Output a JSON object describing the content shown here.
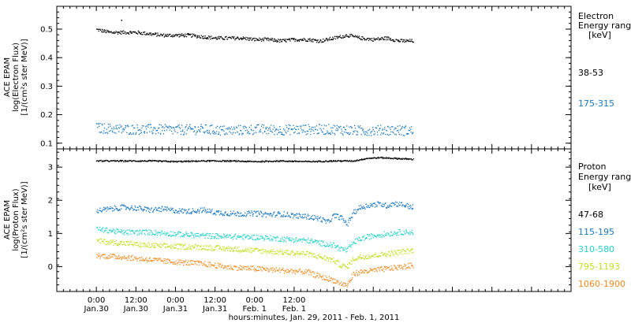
{
  "chart_data": [
    {
      "type": "scatter",
      "panel": "electron",
      "ylabel_lines": [
        "ACE EPAM",
        "log(Electron Flux)",
        "[1/(cm²s ster MeV)]"
      ],
      "ylim": [
        0.08,
        0.58
      ],
      "yticks": [
        0.1,
        0.2,
        0.3,
        0.4,
        0.5
      ],
      "ytick_labels": [
        "0.1",
        "0.2",
        "0.3",
        "0.4",
        "0.5"
      ],
      "legend_title": [
        "Electron",
        "Energy range",
        "[keV]"
      ],
      "series": [
        {
          "name": "38-53",
          "color": "#000000",
          "x": [
            0,
            4,
            8,
            12,
            16,
            20,
            24,
            28,
            32,
            36,
            40,
            44,
            48,
            52,
            56,
            60,
            64,
            68,
            72,
            76,
            80,
            84,
            88,
            90,
            92,
            96
          ],
          "y": [
            0.5,
            0.49,
            0.49,
            0.49,
            0.485,
            0.48,
            0.48,
            0.48,
            0.475,
            0.47,
            0.47,
            0.47,
            0.465,
            0.465,
            0.46,
            0.465,
            0.465,
            0.46,
            0.47,
            0.48,
            0.47,
            0.465,
            0.47,
            0.465,
            0.46,
            0.46
          ]
        },
        {
          "name": "175-315",
          "color": "#1a78c2",
          "x": [
            0,
            8,
            16,
            24,
            32,
            40,
            48,
            56,
            64,
            72,
            80,
            88,
            96
          ],
          "y": [
            0.155,
            0.15,
            0.15,
            0.148,
            0.15,
            0.145,
            0.15,
            0.148,
            0.15,
            0.15,
            0.145,
            0.148,
            0.145
          ]
        }
      ]
    },
    {
      "type": "scatter",
      "panel": "proton",
      "ylabel_lines": [
        "ACE EPAM",
        "log(Proton Flux)",
        "[1/(cm²s ster MeV)]"
      ],
      "ylim": [
        -0.75,
        3.55
      ],
      "yticks": [
        0,
        1,
        2,
        3
      ],
      "ytick_labels": [
        "0",
        "1",
        "2",
        "3"
      ],
      "legend_title": [
        "Proton",
        "Energy range",
        "[keV]"
      ],
      "series": [
        {
          "name": "47-68",
          "color": "#000000",
          "x": [
            0,
            8,
            16,
            24,
            32,
            40,
            48,
            56,
            64,
            72,
            78,
            82,
            86,
            90,
            96
          ],
          "y": [
            3.2,
            3.2,
            3.2,
            3.18,
            3.2,
            3.2,
            3.18,
            3.2,
            3.18,
            3.2,
            3.2,
            3.28,
            3.3,
            3.28,
            3.25
          ]
        },
        {
          "name": "115-195",
          "color": "#1a78c2",
          "x": [
            0,
            4,
            8,
            12,
            16,
            20,
            24,
            28,
            32,
            36,
            40,
            44,
            48,
            52,
            56,
            60,
            64,
            68,
            70,
            72,
            74,
            76,
            78,
            80,
            82,
            84,
            86,
            88,
            90,
            92,
            94,
            96
          ],
          "y": [
            1.7,
            1.75,
            1.8,
            1.78,
            1.72,
            1.75,
            1.7,
            1.68,
            1.72,
            1.65,
            1.62,
            1.6,
            1.62,
            1.58,
            1.6,
            1.55,
            1.52,
            1.45,
            1.35,
            1.55,
            1.5,
            1.3,
            1.65,
            1.8,
            1.85,
            1.88,
            1.9,
            1.85,
            1.92,
            1.9,
            1.85,
            1.8
          ]
        },
        {
          "name": "310-580",
          "color": "#22d3c8",
          "x": [
            0,
            8,
            16,
            24,
            32,
            40,
            48,
            56,
            64,
            68,
            72,
            74,
            76,
            78,
            80,
            84,
            88,
            92,
            96
          ],
          "y": [
            1.15,
            1.05,
            1.05,
            1.0,
            0.95,
            0.92,
            0.9,
            0.85,
            0.8,
            0.72,
            0.65,
            0.55,
            0.5,
            0.75,
            0.85,
            0.95,
            1.0,
            1.05,
            1.05
          ]
        },
        {
          "name": "795-1193",
          "color": "#c8dc1e",
          "x": [
            0,
            8,
            16,
            24,
            32,
            40,
            48,
            56,
            64,
            68,
            72,
            74,
            76,
            78,
            80,
            84,
            88,
            92,
            96
          ],
          "y": [
            0.78,
            0.72,
            0.65,
            0.62,
            0.6,
            0.55,
            0.5,
            0.45,
            0.4,
            0.3,
            0.2,
            0.05,
            0.0,
            0.25,
            0.3,
            0.35,
            0.4,
            0.45,
            0.5
          ]
        },
        {
          "name": "1060-1900",
          "color": "#f08a1e",
          "x": [
            0,
            8,
            16,
            24,
            32,
            40,
            48,
            56,
            64,
            68,
            72,
            74,
            76,
            78,
            80,
            84,
            88,
            92,
            96
          ],
          "y": [
            0.35,
            0.3,
            0.22,
            0.15,
            0.1,
            0.0,
            -0.05,
            -0.1,
            -0.15,
            -0.3,
            -0.4,
            -0.5,
            -0.55,
            -0.2,
            -0.15,
            -0.1,
            -0.05,
            0.0,
            0.05
          ]
        }
      ]
    }
  ],
  "xaxis": {
    "xlim": [
      -12,
      144
    ],
    "tick_hours": [
      0,
      12,
      24,
      36,
      48,
      60,
      72,
      84
    ],
    "tick_labels_top": [
      "0:00",
      "12:00",
      "0:00",
      "12:00",
      "0:00",
      "12:00"
    ],
    "tick_labels_bottom": [
      "Jan.30",
      "Jan.30",
      "Jan.31",
      "Jan.31",
      "Feb. 1",
      "Feb. 1"
    ],
    "label_hours": [
      0,
      12,
      24,
      36,
      48,
      60
    ],
    "title": "hours:minutes, Jan. 29, 2011 - Feb. 1, 2011"
  },
  "electron_legend": {
    "title1": "Electron",
    "title2": "Energy range",
    "title3": "[keV]"
  },
  "proton_legend": {
    "title1": "Proton",
    "title2": "Energy range",
    "title3": "[keV]"
  },
  "electron_ylabel": {
    "l1": "ACE EPAM",
    "l2": "log(Electron Flux)",
    "l3": "[1/(cm²s ster MeV)]"
  },
  "proton_ylabel": {
    "l1": "ACE EPAM",
    "l2": "log(Proton Flux)",
    "l3": "[1/(cm²s ster MeV)]"
  }
}
